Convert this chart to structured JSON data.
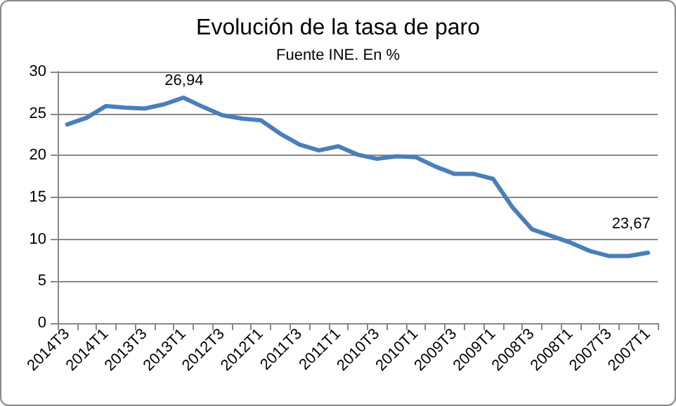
{
  "chart_data": {
    "type": "line",
    "title": "Evolución de la tasa de paro",
    "subtitle": "Fuente INE. En %",
    "categories": [
      "2014T3",
      null,
      "2014T1",
      null,
      "2013T3",
      null,
      "2013T1",
      null,
      "2012T3",
      null,
      "2012T1",
      null,
      "2011T3",
      null,
      "2011T1",
      null,
      "2010T3",
      null,
      "2010T1",
      null,
      "2009T3",
      null,
      "2009T1",
      null,
      "2008T3",
      null,
      "2008T1",
      null,
      "2007T3",
      null,
      "2007T1"
    ],
    "series": [
      {
        "color": "#4a7ebb",
        "values": [
          23.7,
          24.5,
          25.9,
          25.7,
          25.6,
          26.1,
          26.9,
          25.8,
          24.8,
          24.4,
          24.2,
          22.6,
          21.3,
          20.6,
          21.1,
          20.1,
          19.6,
          19.9,
          19.8,
          18.7,
          17.8,
          17.8,
          17.2,
          13.8,
          11.2,
          10.4,
          9.6,
          8.6,
          8.0,
          8.0,
          8.4
        ]
      }
    ],
    "ylim": [
      0,
      30
    ],
    "yticks": [
      0,
      5,
      10,
      15,
      20,
      25,
      30
    ],
    "grid": "y",
    "marker": "none",
    "line_style": "solid",
    "annotations": [
      {
        "text": "26,94",
        "x": "2013T1",
        "y": 26.94
      },
      "23,67"
    ]
  }
}
